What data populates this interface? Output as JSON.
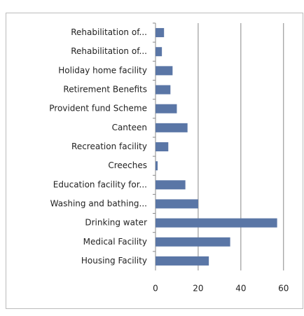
{
  "chart_data": {
    "type": "hbar",
    "categories": [
      "Rehabilitation of...",
      "Rehabilitation of...",
      "Holiday home facility",
      "Retirement Benefits",
      "Provident fund Scheme",
      "Canteen",
      "Recreation facility",
      "Creeches",
      "Education facility for...",
      "Washing and bathing...",
      "Drinking water",
      "Medical Facility",
      "Housing Facility"
    ],
    "values": [
      4,
      3,
      8,
      7,
      10,
      15,
      6,
      1,
      14,
      20,
      57,
      35,
      25
    ],
    "color": "#5a76a6",
    "xlim": [
      0,
      65
    ],
    "xticks": [
      0,
      20,
      40,
      60
    ],
    "grid": true
  }
}
